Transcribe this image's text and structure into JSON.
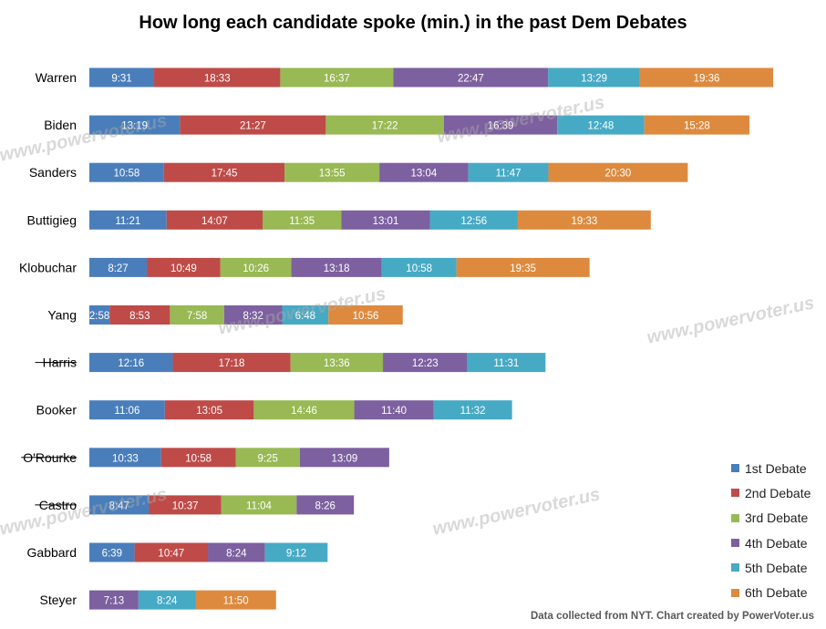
{
  "title": "How long each candidate spoke (min.) in the past Dem Debates",
  "footer": "Data collected from NYT. Chart created by PowerVoter.us",
  "watermark": "www.powervoter.us",
  "chart_data": {
    "type": "bar",
    "orientation": "horizontal",
    "stacked": true,
    "categories": [
      "Warren",
      "Biden",
      "Sanders",
      "Buttigieg",
      "Klobuchar",
      "Yang",
      "Harris",
      "Booker",
      "O'Rourke",
      "Castro",
      "Gabbard",
      "Steyer"
    ],
    "struck_out": [
      "Harris",
      "O'Rourke",
      "Castro"
    ],
    "series": [
      {
        "name": "1st Debate",
        "color": "#4a7ebb",
        "values": [
          9.52,
          13.32,
          10.97,
          11.35,
          8.45,
          2.97,
          12.27,
          11.1,
          10.55,
          8.78,
          6.65,
          null
        ],
        "labels": [
          "9:31",
          "13:19",
          "10:58",
          "11:21",
          "8:27",
          "2:58",
          "12:16",
          "11:06",
          "10:33",
          "8:47",
          "6:39",
          ""
        ]
      },
      {
        "name": "2nd Debate",
        "color": "#be4b48",
        "values": [
          18.55,
          21.45,
          17.75,
          14.12,
          10.82,
          8.88,
          17.3,
          13.08,
          10.97,
          10.62,
          10.78,
          null
        ],
        "labels": [
          "18:33",
          "21:27",
          "17:45",
          "14:07",
          "10:49",
          "8:53",
          "17:18",
          "13:05",
          "10:58",
          "10:37",
          "10:47",
          ""
        ]
      },
      {
        "name": "3rd Debate",
        "color": "#98b954",
        "values": [
          16.62,
          17.37,
          13.92,
          11.58,
          10.43,
          7.97,
          13.6,
          14.77,
          9.42,
          11.07,
          null,
          null
        ],
        "labels": [
          "16:37",
          "17:22",
          "13:55",
          "11:35",
          "10:26",
          "7:58",
          "13:36",
          "14:46",
          "9:25",
          "11:04",
          "",
          ""
        ]
      },
      {
        "name": "4th Debate",
        "color": "#7d60a0",
        "values": [
          22.78,
          16.65,
          13.07,
          13.02,
          13.3,
          8.53,
          12.38,
          11.67,
          13.15,
          8.43,
          8.4,
          7.22
        ],
        "labels": [
          "22:47",
          "16:39",
          "13:04",
          "13:01",
          "13:18",
          "8:32",
          "12:23",
          "11:40",
          "13:09",
          "8:26",
          "8:24",
          "7:13"
        ]
      },
      {
        "name": "5th Debate",
        "color": "#46aac5",
        "values": [
          13.48,
          12.8,
          11.78,
          12.93,
          10.97,
          6.8,
          11.52,
          11.53,
          null,
          null,
          9.2,
          8.4
        ],
        "labels": [
          "13:29",
          "12:48",
          "11:47",
          "12:56",
          "10:58",
          "6:48",
          "11:31",
          "11:32",
          "",
          "",
          "9:12",
          "8:24"
        ]
      },
      {
        "name": "6th Debate",
        "color": "#dd8a3e",
        "values": [
          19.6,
          15.47,
          20.5,
          19.55,
          19.58,
          10.93,
          null,
          null,
          null,
          null,
          null,
          11.83
        ],
        "labels": [
          "19:36",
          "15:28",
          "20:30",
          "19:33",
          "19:35",
          "10:56",
          "",
          "",
          "",
          "",
          "",
          "11:50"
        ]
      }
    ],
    "xlabel": "",
    "ylabel": "",
    "grid": false,
    "legend": "bottom-right"
  }
}
